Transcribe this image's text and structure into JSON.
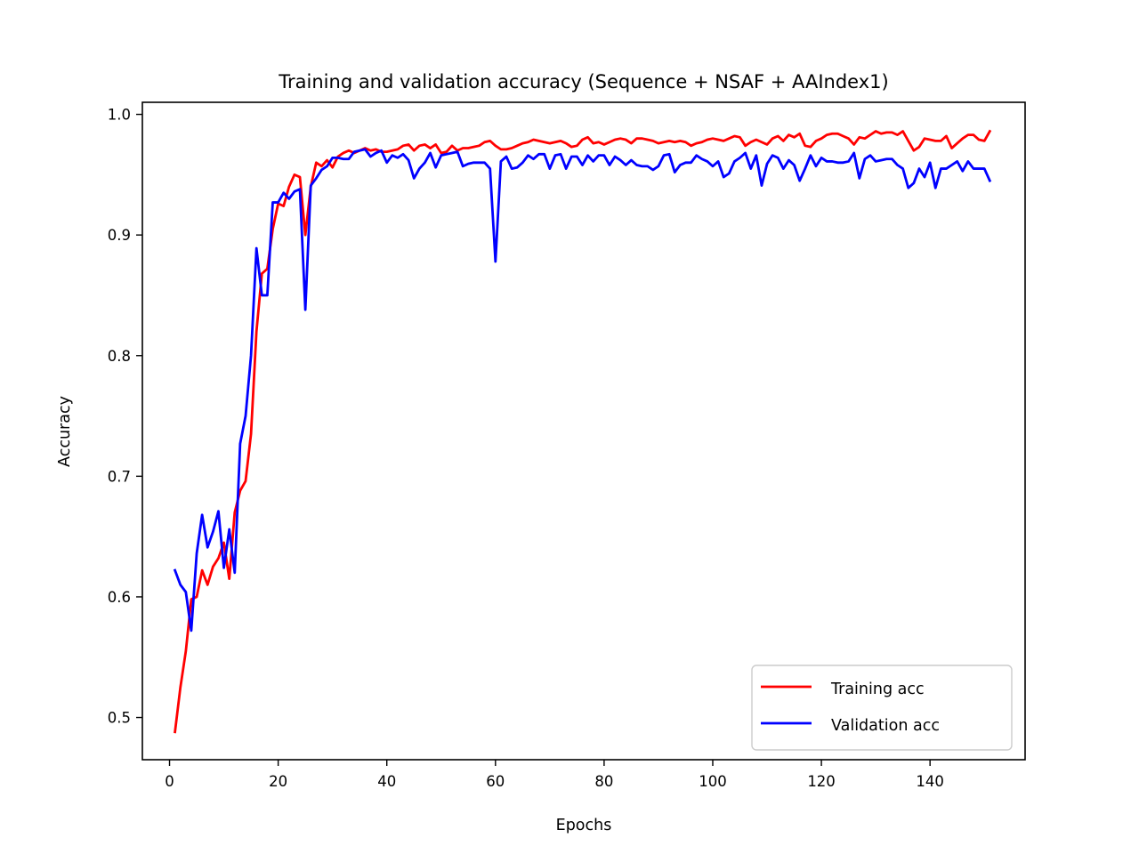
{
  "chart_data": {
    "type": "line",
    "title": "Training and validation accuracy (Sequence + NSAF + AAIndex1)",
    "xlabel": "Epochs",
    "ylabel": "Accuracy",
    "xlim": [
      -5,
      157.5
    ],
    "ylim": [
      0.465,
      1.01
    ],
    "xticks": [
      0,
      20,
      40,
      60,
      80,
      100,
      120,
      140
    ],
    "yticks": [
      0.5,
      0.6,
      0.7,
      0.8,
      0.9,
      1.0
    ],
    "ytick_labels": [
      "0.5",
      "0.6",
      "0.7",
      "0.8",
      "0.9",
      "1.0"
    ],
    "grid": false,
    "legend_position": "lower-right",
    "x_start": 1,
    "series": [
      {
        "name": "Training acc",
        "color": "#ff0000",
        "values": [
          0.488,
          0.525,
          0.555,
          0.598,
          0.6,
          0.622,
          0.61,
          0.625,
          0.632,
          0.645,
          0.615,
          0.67,
          0.688,
          0.696,
          0.735,
          0.82,
          0.868,
          0.872,
          0.905,
          0.926,
          0.924,
          0.94,
          0.95,
          0.948,
          0.9,
          0.94,
          0.96,
          0.957,
          0.962,
          0.956,
          0.965,
          0.968,
          0.97,
          0.968,
          0.97,
          0.972,
          0.97,
          0.971,
          0.969,
          0.969,
          0.97,
          0.971,
          0.974,
          0.975,
          0.97,
          0.974,
          0.975,
          0.972,
          0.975,
          0.968,
          0.969,
          0.974,
          0.97,
          0.972,
          0.972,
          0.973,
          0.974,
          0.977,
          0.978,
          0.974,
          0.971,
          0.971,
          0.972,
          0.974,
          0.976,
          0.977,
          0.979,
          0.978,
          0.977,
          0.976,
          0.977,
          0.978,
          0.976,
          0.973,
          0.974,
          0.979,
          0.981,
          0.976,
          0.977,
          0.975,
          0.977,
          0.979,
          0.98,
          0.979,
          0.976,
          0.98,
          0.98,
          0.979,
          0.978,
          0.976,
          0.977,
          0.978,
          0.977,
          0.978,
          0.977,
          0.974,
          0.976,
          0.977,
          0.979,
          0.98,
          0.979,
          0.978,
          0.98,
          0.982,
          0.981,
          0.974,
          0.977,
          0.979,
          0.977,
          0.975,
          0.98,
          0.982,
          0.978,
          0.983,
          0.981,
          0.984,
          0.974,
          0.973,
          0.978,
          0.98,
          0.983,
          0.984,
          0.984,
          0.982,
          0.98,
          0.975,
          0.981,
          0.98,
          0.983,
          0.986,
          0.984,
          0.985,
          0.985,
          0.983,
          0.986,
          0.978,
          0.97,
          0.973,
          0.98,
          0.979,
          0.978,
          0.978,
          0.982,
          0.972,
          0.976,
          0.98,
          0.983,
          0.983,
          0.979,
          0.978,
          0.986
        ]
      },
      {
        "name": "Validation acc",
        "color": "#0000ff",
        "values": [
          0.622,
          0.61,
          0.604,
          0.572,
          0.636,
          0.668,
          0.641,
          0.654,
          0.671,
          0.624,
          0.656,
          0.62,
          0.727,
          0.75,
          0.8,
          0.889,
          0.85,
          0.85,
          0.927,
          0.927,
          0.935,
          0.93,
          0.936,
          0.938,
          0.838,
          0.941,
          0.947,
          0.954,
          0.957,
          0.964,
          0.964,
          0.963,
          0.963,
          0.969,
          0.97,
          0.971,
          0.965,
          0.968,
          0.97,
          0.96,
          0.966,
          0.964,
          0.967,
          0.962,
          0.947,
          0.955,
          0.96,
          0.968,
          0.956,
          0.966,
          0.967,
          0.968,
          0.969,
          0.957,
          0.959,
          0.96,
          0.96,
          0.96,
          0.955,
          0.878,
          0.961,
          0.965,
          0.955,
          0.956,
          0.96,
          0.966,
          0.963,
          0.967,
          0.967,
          0.955,
          0.966,
          0.967,
          0.955,
          0.965,
          0.965,
          0.958,
          0.966,
          0.961,
          0.966,
          0.966,
          0.958,
          0.965,
          0.962,
          0.958,
          0.962,
          0.958,
          0.957,
          0.957,
          0.954,
          0.957,
          0.966,
          0.967,
          0.952,
          0.958,
          0.96,
          0.96,
          0.966,
          0.963,
          0.961,
          0.957,
          0.961,
          0.948,
          0.951,
          0.961,
          0.964,
          0.968,
          0.955,
          0.966,
          0.941,
          0.959,
          0.966,
          0.964,
          0.955,
          0.962,
          0.958,
          0.945,
          0.955,
          0.966,
          0.957,
          0.964,
          0.961,
          0.961,
          0.96,
          0.96,
          0.961,
          0.968,
          0.947,
          0.963,
          0.966,
          0.961,
          0.962,
          0.963,
          0.963,
          0.958,
          0.955,
          0.939,
          0.943,
          0.955,
          0.948,
          0.96,
          0.939,
          0.955,
          0.955,
          0.958,
          0.961,
          0.953,
          0.961,
          0.955,
          0.955,
          0.955,
          0.945
        ]
      }
    ]
  }
}
